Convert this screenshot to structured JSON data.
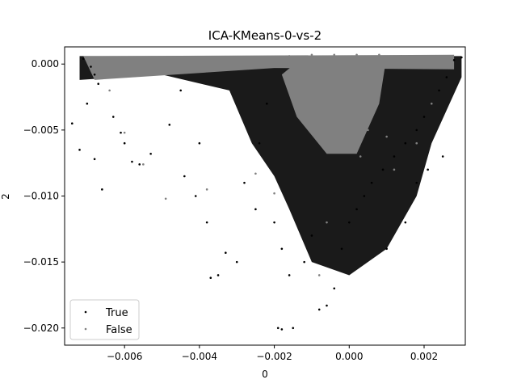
{
  "chart_data": {
    "type": "scatter",
    "title": "ICA-KMeans-0-vs-2",
    "xlabel": "0",
    "ylabel": "2",
    "xlim": [
      -0.0076,
      0.0031
    ],
    "ylim": [
      -0.0213,
      0.0013
    ],
    "x_ticks": [
      -0.006,
      -0.004,
      -0.002,
      0.0,
      0.002
    ],
    "x_tick_labels": [
      "−0.006",
      "−0.004",
      "−0.002",
      "0.000",
      "0.002"
    ],
    "y_ticks": [
      0.0,
      -0.005,
      -0.01,
      -0.015,
      -0.02
    ],
    "y_tick_labels": [
      "0.000",
      "−0.005",
      "−0.010",
      "−0.015",
      "−0.020"
    ],
    "grid": false,
    "legend_position": "lower-left",
    "series": [
      {
        "name": "True",
        "color": "#000000",
        "points": [
          [
            -0.0071,
            0.0004
          ],
          [
            -0.0069,
            -0.0002
          ],
          [
            -0.0068,
            -0.0008
          ],
          [
            -0.0067,
            -0.0015
          ],
          [
            -0.007,
            -0.003
          ],
          [
            -0.0074,
            -0.0045
          ],
          [
            -0.0072,
            -0.0065
          ],
          [
            -0.0068,
            -0.0072
          ],
          [
            -0.0066,
            -0.0095
          ],
          [
            -0.0061,
            -0.0052
          ],
          [
            -0.0058,
            -0.0074
          ],
          [
            -0.0056,
            -0.0076
          ],
          [
            -0.0063,
            -0.004
          ],
          [
            -0.006,
            -0.006
          ],
          [
            -0.0053,
            -0.0068
          ],
          [
            -0.0048,
            -0.0046
          ],
          [
            -0.0045,
            -0.002
          ],
          [
            -0.004,
            -0.006
          ],
          [
            -0.0044,
            -0.0085
          ],
          [
            -0.0041,
            -0.01
          ],
          [
            -0.0038,
            -0.012
          ],
          [
            -0.0035,
            -0.016
          ],
          [
            -0.0033,
            -0.0143
          ],
          [
            -0.003,
            -0.015
          ],
          [
            -0.0037,
            -0.0162
          ],
          [
            -0.0028,
            -0.009
          ],
          [
            -0.0025,
            -0.011
          ],
          [
            -0.0024,
            -0.006
          ],
          [
            -0.0022,
            -0.003
          ],
          [
            -0.002,
            -0.012
          ],
          [
            -0.0018,
            -0.014
          ],
          [
            -0.0016,
            -0.016
          ],
          [
            -0.0019,
            -0.02
          ],
          [
            -0.0018,
            -0.0201
          ],
          [
            -0.0015,
            -0.02
          ],
          [
            -0.0012,
            -0.015
          ],
          [
            -0.001,
            -0.013
          ],
          [
            -0.0008,
            -0.0186
          ],
          [
            -0.0006,
            -0.0183
          ],
          [
            -0.0004,
            -0.017
          ],
          [
            -0.0002,
            -0.014
          ],
          [
            0.0,
            -0.012
          ],
          [
            0.0002,
            -0.011
          ],
          [
            0.0004,
            -0.01
          ],
          [
            0.0006,
            -0.009
          ],
          [
            0.0009,
            -0.008
          ],
          [
            0.0012,
            -0.007
          ],
          [
            0.0015,
            -0.006
          ],
          [
            0.0018,
            -0.005
          ],
          [
            0.002,
            -0.004
          ],
          [
            0.0022,
            -0.003
          ],
          [
            0.0024,
            -0.002
          ],
          [
            0.0026,
            -0.001
          ],
          [
            0.0028,
            0.0003
          ],
          [
            0.003,
            0.0005
          ],
          [
            0.0018,
            -0.009
          ],
          [
            0.0021,
            -0.008
          ],
          [
            0.0025,
            -0.007
          ],
          [
            0.0015,
            -0.012
          ],
          [
            0.001,
            -0.014
          ]
        ]
      },
      {
        "name": "False",
        "color": "#808080",
        "points": [
          [
            -0.007,
            0.0003
          ],
          [
            -0.0064,
            0.0002
          ],
          [
            -0.0058,
            0.0001
          ],
          [
            -0.0052,
            0.0
          ],
          [
            -0.0046,
            0.0002
          ],
          [
            -0.004,
            0.0001
          ],
          [
            -0.0034,
            0.0
          ],
          [
            -0.0028,
            0.0003
          ],
          [
            -0.0022,
            0.0005
          ],
          [
            -0.0016,
            0.0006
          ],
          [
            -0.001,
            0.0007
          ],
          [
            -0.0004,
            0.0007
          ],
          [
            0.0002,
            0.0007
          ],
          [
            0.0008,
            0.0007
          ],
          [
            0.0014,
            0.0006
          ],
          [
            0.002,
            0.0006
          ],
          [
            0.0024,
            0.0004
          ],
          [
            -0.0005,
            -0.003
          ],
          [
            0.0,
            -0.004
          ],
          [
            0.0005,
            -0.005
          ],
          [
            0.001,
            -0.0055
          ],
          [
            -0.0002,
            -0.0065
          ],
          [
            0.0003,
            -0.007
          ],
          [
            -0.0049,
            -0.0102
          ],
          [
            -0.0038,
            -0.0095
          ],
          [
            -0.0025,
            -0.0083
          ],
          [
            -0.002,
            -0.0098
          ],
          [
            -0.0008,
            -0.016
          ],
          [
            -0.0006,
            -0.012
          ],
          [
            -0.0064,
            -0.002
          ],
          [
            -0.006,
            -0.0052
          ],
          [
            -0.0055,
            -0.0076
          ],
          [
            0.0012,
            -0.008
          ],
          [
            0.0018,
            -0.006
          ],
          [
            0.0022,
            -0.003
          ]
        ]
      }
    ]
  }
}
